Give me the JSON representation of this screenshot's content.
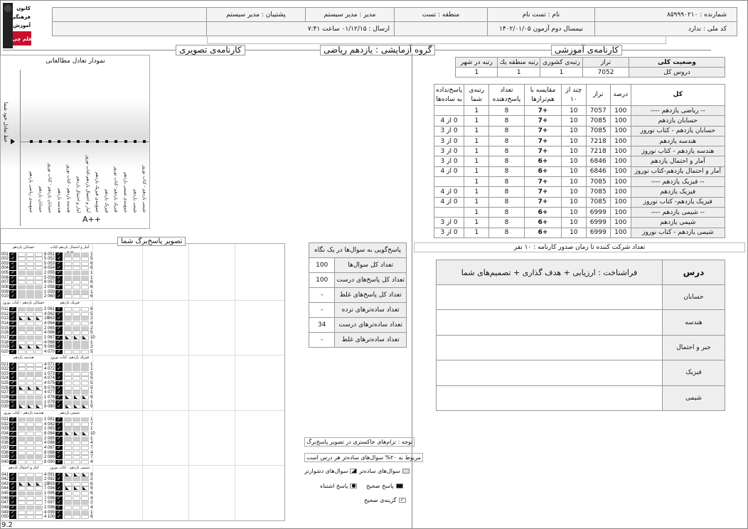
{
  "logo": {
    "text": "کانون فرهنگی آموزش قلم چی"
  },
  "header": {
    "row1": [
      "شمارنده : ۸۵۹۹۹۰۲۱۰",
      "نام : تست نام",
      "منطقه : تست",
      "مدیر : مدیر سیستم",
      "پشتیبان : مدیر سیستم",
      ""
    ],
    "row2": [
      "کد ملی : ندارد",
      "نیمسال دوم آزمون ۱۴۰۲/۰۱/۰۵",
      "",
      "ارسال : ۰۱/۱۲/۱۵ ساعت ۷:۴۱",
      ""
    ]
  },
  "sections": {
    "educational": "کارنامه‌ی آموزشی",
    "group": "گروه آزمایشی : یازدهم ریاضی",
    "visual": "کارنامه‌ی تصویری",
    "answer_sheet": "تصویر پاسخ‌برگ شما"
  },
  "summary": {
    "headers": [
      "وضعیت کلی",
      "تراز",
      "رتبه‌ی کشوری",
      "رتبه منطقه یك",
      "رتبه در شهر"
    ],
    "row": [
      "دروس کل",
      "7052",
      "1",
      "1",
      "1"
    ]
  },
  "results": {
    "headers": [
      "کل",
      "درصد",
      "تراز",
      "چند از ۱۰",
      "مقایسه با هم‌ترازها",
      "تعداد پاسخ‌دهنده",
      "رتبه‌ی شما",
      "پاسخ‌نداده به ساده‌ها"
    ],
    "rows": [
      [
        "-- ریاضی یازدهم ----",
        "100",
        "7057",
        "10",
        "+7",
        "8",
        "1",
        ""
      ],
      [
        "حسابان یازدهم",
        "100",
        "7085",
        "10",
        "+7",
        "8",
        "1",
        "0 از 4"
      ],
      [
        "حسابان یازدهم - کتاب نوروز",
        "100",
        "7085",
        "10",
        "+7",
        "8",
        "1",
        "0 از 3"
      ],
      [
        "هندسه یازدهم",
        "100",
        "7218",
        "10",
        "+7",
        "8",
        "1",
        "0 از 3"
      ],
      [
        "هندسه یازدهم - کتاب نوروز",
        "100",
        "7218",
        "10",
        "+7",
        "8",
        "1",
        "0 از 3"
      ],
      [
        "آمار و احتمال یازدهم",
        "100",
        "6846",
        "10",
        "+6",
        "8",
        "1",
        "0 از 3"
      ],
      [
        "آمار و احتمال یازدهم-کتاب نوروز",
        "100",
        "6846",
        "10",
        "+6",
        "8",
        "1",
        "0 از 4"
      ],
      [
        "-- فیزیک یازدهم ----",
        "100",
        "7085",
        "10",
        "+7",
        "8",
        "1",
        ""
      ],
      [
        "فیزیک یازدهم",
        "100",
        "7085",
        "10",
        "+7",
        "8",
        "1",
        "0 از 4"
      ],
      [
        "فیزیک یازدهم- کتاب نوروز",
        "100",
        "7085",
        "10",
        "+7",
        "8",
        "1",
        "0 از 4"
      ],
      [
        "-- شیمی یازدهم ----",
        "100",
        "6999",
        "10",
        "+6",
        "8",
        "1",
        ""
      ],
      [
        "شیمی یازدهم",
        "100",
        "6999",
        "10",
        "+6",
        "8",
        "1",
        "0 از 3"
      ],
      [
        "شیمی یازدهم - کتاب نوروز",
        "100",
        "6999",
        "10",
        "+6",
        "8",
        "1",
        "0 از 3"
      ]
    ]
  },
  "participants": "تعداد شرکت کننده تا زمان صدور کارنامه : ۱۰ نفر",
  "metacognition": {
    "headers": [
      "درس",
      "فراشناخت : ارزیابی + هدف گذاری + تصمیم‌های شما"
    ],
    "rows": [
      "حسابان",
      "هندسه",
      "جبر و احتمال",
      "فیزیک",
      "شیمی"
    ]
  },
  "glance": {
    "title": "پاسخ‌گویی به سوال‌ها در یک نگاه",
    "rows": [
      [
        "تعداد کل سوال‌ها",
        "100"
      ],
      [
        "تعداد کل پاسخ‌های درست",
        "100"
      ],
      [
        "تعداد کل پاسخ‌های غلط",
        "-"
      ],
      [
        "تعداد ساده‌ترهای نزده",
        "-"
      ],
      [
        "تعداد ساده‌ترهای درست",
        "34"
      ],
      [
        "تعداد ساده‌ترهای غلط",
        "-"
      ]
    ]
  },
  "legend": {
    "note1": "توجه : ترام‌های خاکستری در تصویر پاسخ‌برگ",
    "note2": "مربوط به ۲۰% سوال‌های ساده‌تر هر درس است",
    "easier": "سوال‌های ساده‌تر",
    "harder": "سوال‌های دشوارتر",
    "correct": "پاسخ صحیح",
    "wrong": "پاسخ اشتباه",
    "correct_option": "گزینه‌ی صحیح"
  },
  "balance_chart": {
    "title": "نمودار تعادل مطالعاتی",
    "ylabel": "خط تعادل خود شما",
    "bottom_label": "A++",
    "subjects": [
      "جمع‌بندی ریاضی یازدهم",
      "حسابان یازدهم",
      "حسابان یازدهم - کتاب نوروز",
      "هندسه یازدهم",
      "هندسه یازدهم - کتاب نوروز",
      "آمار و احتمال یازدهم",
      "آمار و احتمال یازدهم-کتاب نوروز",
      "جمع‌بندی فیزیک یازدهم",
      "فیزیک یازدهم",
      "فیزیک یازدهم- کتاب نوروز",
      "جمع‌بندی شیمی یازدهم",
      "شیمی یازدهم",
      "شیمی یازدهم - کتاب نوروز"
    ]
  },
  "answer_sheet": {
    "groups": [
      {
        "title": "حسابان یازدهم",
        "q": [
          [
            "001",
            "w",
            8
          ],
          [
            "002",
            "w",
            5
          ],
          [
            "003",
            "w",
            5
          ],
          [
            "004",
            "w",
            8
          ],
          [
            "005",
            "g",
            2
          ],
          [
            "006",
            "w",
            5
          ],
          [
            "007",
            "w",
            8
          ],
          [
            "008",
            "g",
            2
          ],
          [
            "009",
            "g",
            1
          ],
          [
            "010",
            "g",
            2
          ]
        ]
      },
      {
        "title": "حسابان یازدهم - کتاب نوروز",
        "q": [
          [
            "011",
            "g",
            2
          ],
          [
            "012",
            "w",
            4
          ],
          [
            "013",
            "h",
            10
          ],
          [
            "014",
            "w",
            4
          ],
          [
            "015",
            "g",
            2
          ],
          [
            "016",
            "w",
            4
          ],
          [
            "017",
            "g",
            1
          ],
          [
            "018",
            "w",
            4
          ],
          [
            "019",
            "h",
            9
          ],
          [
            "020",
            "w",
            4
          ]
        ]
      },
      {
        "title": "هندسه یازدهم",
        "q": [
          [
            "021",
            "w",
            4
          ],
          [
            "022",
            "w",
            4
          ],
          [
            "023",
            "g",
            1
          ],
          [
            "024",
            "w",
            4
          ],
          [
            "025",
            "w",
            4
          ],
          [
            "026",
            "h",
            9
          ],
          [
            "027",
            "w",
            4
          ],
          [
            "028",
            "g",
            1
          ],
          [
            "029",
            "g",
            1
          ],
          [
            "030",
            "h",
            9
          ]
        ]
      },
      {
        "title": "هندسه یازدهم - کتاب نوروز",
        "q": [
          [
            "031",
            "g",
            1
          ],
          [
            "032",
            "w",
            4
          ],
          [
            "033",
            "g",
            1
          ],
          [
            "034",
            "w",
            8
          ],
          [
            "035",
            "g",
            2
          ],
          [
            "036",
            "w",
            4
          ],
          [
            "037",
            "w",
            4
          ],
          [
            "038",
            "w",
            8
          ],
          [
            "039",
            "g",
            2
          ],
          [
            "040",
            "w",
            8
          ]
        ]
      },
      {
        "title": "آمار و احتمال یازدهم",
        "q": [
          [
            "041",
            "w",
            4
          ],
          [
            "042",
            "g",
            2
          ],
          [
            "043",
            "h",
            10
          ],
          [
            "044",
            "w",
            7
          ],
          [
            "045",
            "g",
            1
          ],
          [
            "046",
            "w",
            7
          ],
          [
            "047",
            "w",
            7
          ],
          [
            "048",
            "g",
            2
          ],
          [
            "049",
            "w",
            4
          ],
          [
            "050",
            "w",
            4
          ]
        ]
      },
      {
        "title": "آمار و احتمال یازدهم-کتاب نوروز",
        "q": [
          [
            "051",
            "g",
            1
          ],
          [
            "052",
            "w",
            5
          ],
          [
            "053",
            "w",
            6
          ],
          [
            "054",
            "w",
            6
          ],
          [
            "055",
            "g",
            1
          ],
          [
            "056",
            "g",
            1
          ],
          [
            "057",
            "w",
            6
          ],
          [
            "058",
            "w",
            6
          ],
          [
            "059",
            "g",
            1
          ],
          [
            "060",
            "w",
            6
          ]
        ]
      },
      {
        "title": "فیزیک یازدهم",
        "q": [
          [
            "061",
            "w",
            8
          ],
          [
            "062",
            "w",
            5
          ],
          [
            "063",
            "g",
            2
          ],
          [
            "064",
            "w",
            8
          ],
          [
            "065",
            "g",
            2
          ],
          [
            "066",
            "w",
            5
          ],
          [
            "067",
            "h",
            10
          ],
          [
            "068",
            "g",
            1
          ],
          [
            "069",
            "g",
            2
          ],
          [
            "070",
            "w",
            5
          ]
        ]
      },
      {
        "title": "فیزیک یازدهم- کتاب نوروز",
        "q": [
          [
            "071",
            "g",
            1
          ],
          [
            "072",
            "g",
            1
          ],
          [
            "073",
            "w",
            5
          ],
          [
            "074",
            "w",
            5
          ],
          [
            "075",
            "w",
            5
          ],
          [
            "076",
            "w",
            5
          ],
          [
            "077",
            "g",
            1
          ],
          [
            "078",
            "h",
            9
          ],
          [
            "079",
            "g",
            1
          ],
          [
            "080",
            "h",
            9
          ]
        ]
      },
      {
        "title": "شیمی یازدهم",
        "q": [
          [
            "081",
            "g",
            1
          ],
          [
            "082",
            "w",
            7
          ],
          [
            "083",
            "g",
            1
          ],
          [
            "084",
            "h",
            10
          ],
          [
            "085",
            "g",
            1
          ],
          [
            "086",
            "w",
            4
          ],
          [
            "087",
            "w",
            7
          ],
          [
            "088",
            "w",
            4
          ],
          [
            "089",
            "w",
            7
          ],
          [
            "090",
            "w",
            4
          ]
        ]
      },
      {
        "title": "شیمی یازدهم - کتاب نوروز",
        "q": [
          [
            "091",
            "h",
            9
          ],
          [
            "092",
            "g",
            2
          ],
          [
            "093",
            "w",
            6
          ],
          [
            "094",
            "h",
            9
          ],
          [
            "095",
            "w",
            6
          ],
          [
            "096",
            "w",
            4
          ],
          [
            "097",
            "g",
            2
          ],
          [
            "098",
            "w",
            4
          ],
          [
            "099",
            "g",
            1
          ],
          [
            "100",
            "w",
            6
          ]
        ]
      }
    ]
  },
  "footer": {
    "version": "9.2"
  }
}
